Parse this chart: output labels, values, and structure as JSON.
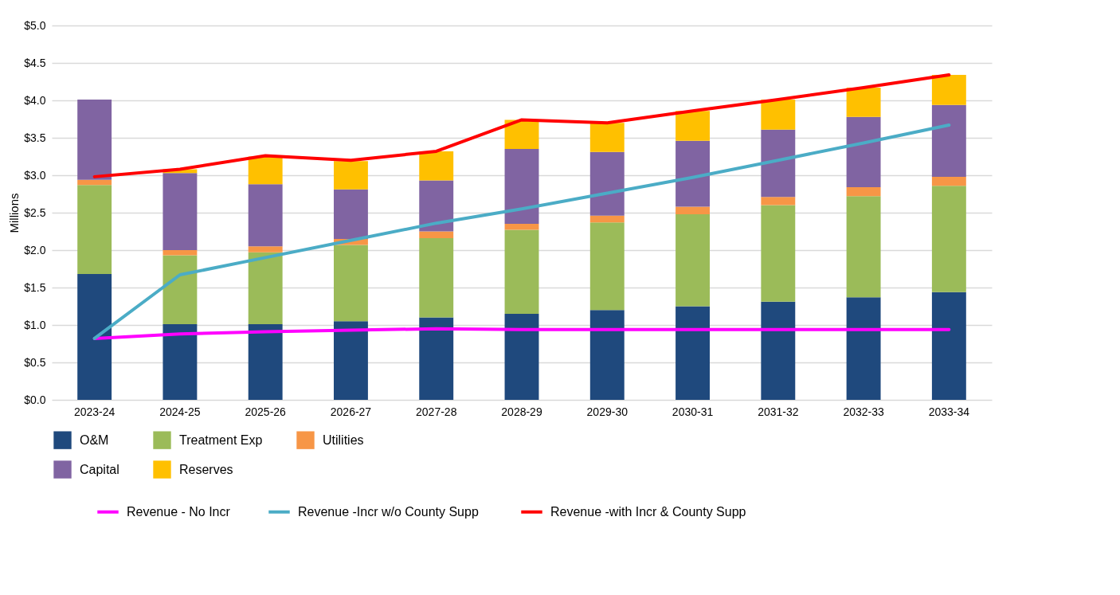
{
  "chart_data": {
    "type": "bar",
    "stacked": true,
    "ylabel": "Millions",
    "categories": [
      "2023-24",
      "2024-25",
      "2025-26",
      "2026-27",
      "2027-28",
      "2028-29",
      "2029-30",
      "2030-31",
      "2031-32",
      "2032-33",
      "2033-34"
    ],
    "series": [
      {
        "name": "O&M",
        "color": "#1f497d",
        "values": [
          1.68,
          1.01,
          1.01,
          1.05,
          1.1,
          1.15,
          1.2,
          1.25,
          1.31,
          1.37,
          1.44
        ]
      },
      {
        "name": "Treatment Exp",
        "color": "#9bbb59",
        "values": [
          1.19,
          0.92,
          0.96,
          1.02,
          1.06,
          1.12,
          1.17,
          1.23,
          1.29,
          1.35,
          1.42
        ]
      },
      {
        "name": "Utilities",
        "color": "#f79646",
        "values": [
          0.07,
          0.07,
          0.08,
          0.08,
          0.09,
          0.08,
          0.09,
          0.1,
          0.11,
          0.12,
          0.12
        ]
      },
      {
        "name": "Capital",
        "color": "#8064a2",
        "values": [
          1.07,
          1.03,
          0.83,
          0.66,
          0.68,
          1.0,
          0.85,
          0.88,
          0.9,
          0.94,
          0.96
        ]
      },
      {
        "name": "Reserves",
        "color": "#ffc000",
        "values": [
          0,
          0.05,
          0.37,
          0.38,
          0.39,
          0.39,
          0.39,
          0.4,
          0.4,
          0.39,
          0.4
        ]
      },
      {
        "name": "Revenue - No Incr",
        "type": "line",
        "color": "#ff00ff",
        "values": [
          0.82,
          0.88,
          0.91,
          0.93,
          0.95,
          0.94,
          0.94,
          0.94,
          0.94,
          0.94,
          0.94
        ]
      },
      {
        "name": "Revenue  -Incr w/o County Supp",
        "type": "line",
        "color": "#4bacc6",
        "values": [
          0.82,
          1.67,
          1.9,
          2.13,
          2.36,
          2.55,
          2.76,
          2.97,
          3.2,
          3.43,
          3.67
        ]
      },
      {
        "name": "Revenue  -with Incr & County Supp",
        "type": "line",
        "color": "#ff0000",
        "values": [
          2.98,
          3.08,
          3.26,
          3.2,
          3.32,
          3.74,
          3.7,
          3.86,
          4.01,
          4.17,
          4.34
        ]
      }
    ],
    "ylim": [
      0,
      5
    ],
    "yticks": [
      {
        "value": 0,
        "label": "$0.0"
      },
      {
        "value": 0.5,
        "label": "$0.5"
      },
      {
        "value": 1,
        "label": "$1.0"
      },
      {
        "value": 1.5,
        "label": "$1.5"
      },
      {
        "value": 2,
        "label": "$2.0"
      },
      {
        "value": 2.5,
        "label": "$2.5"
      },
      {
        "value": 3,
        "label": "$3.0"
      },
      {
        "value": 3.5,
        "label": "$3.5"
      },
      {
        "value": 4,
        "label": "$4.0"
      },
      {
        "value": 4.5,
        "label": "$4.5"
      },
      {
        "value": 5,
        "label": "$5.0"
      }
    ],
    "grid": "y",
    "legend": "bottom",
    "line_style": "solid",
    "marker": "none"
  }
}
